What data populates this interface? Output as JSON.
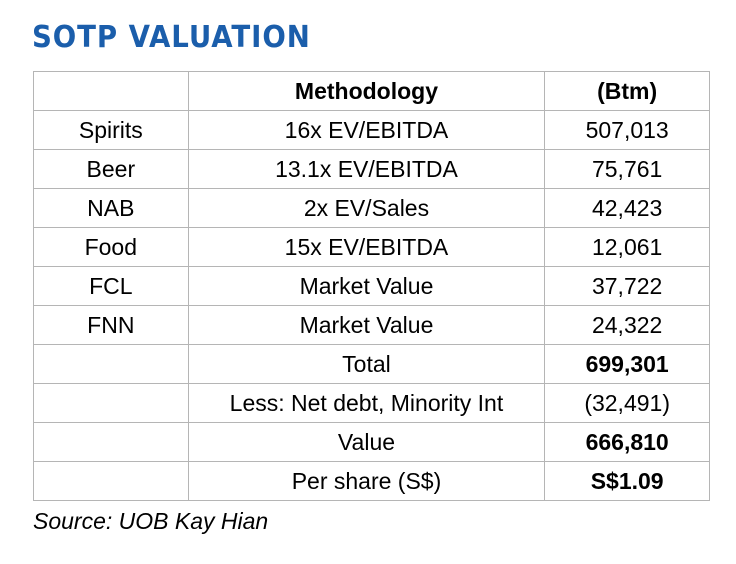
{
  "title": "SOTP VALUATION",
  "columns": [
    "",
    "Methodology",
    "(Btm)"
  ],
  "rows": [
    {
      "segment": "Spirits",
      "methodology": "16x EV/EBITDA",
      "value": "507,013",
      "bold": false
    },
    {
      "segment": "Beer",
      "methodology": "13.1x EV/EBITDA",
      "value": "75,761",
      "bold": false
    },
    {
      "segment": "NAB",
      "methodology": "2x EV/Sales",
      "value": "42,423",
      "bold": false
    },
    {
      "segment": "Food",
      "methodology": "15x EV/EBITDA",
      "value": "12,061",
      "bold": false
    },
    {
      "segment": "FCL",
      "methodology": "Market Value",
      "value": "37,722",
      "bold": false
    },
    {
      "segment": "FNN",
      "methodology": "Market Value",
      "value": "24,322",
      "bold": false
    },
    {
      "segment": "",
      "methodology": "Total",
      "value": "699,301",
      "bold": true
    },
    {
      "segment": "",
      "methodology": "Less: Net debt, Minority Int",
      "value": "(32,491)",
      "bold": false
    },
    {
      "segment": "",
      "methodology": "Value",
      "value": "666,810",
      "bold": true
    },
    {
      "segment": "",
      "methodology": "Per share (S$)",
      "value": "S$1.09",
      "bold": true
    }
  ],
  "source": "Source: UOB Kay Hian",
  "colors": {
    "title": "#1b5eab",
    "grid": "#b5b5b5"
  }
}
